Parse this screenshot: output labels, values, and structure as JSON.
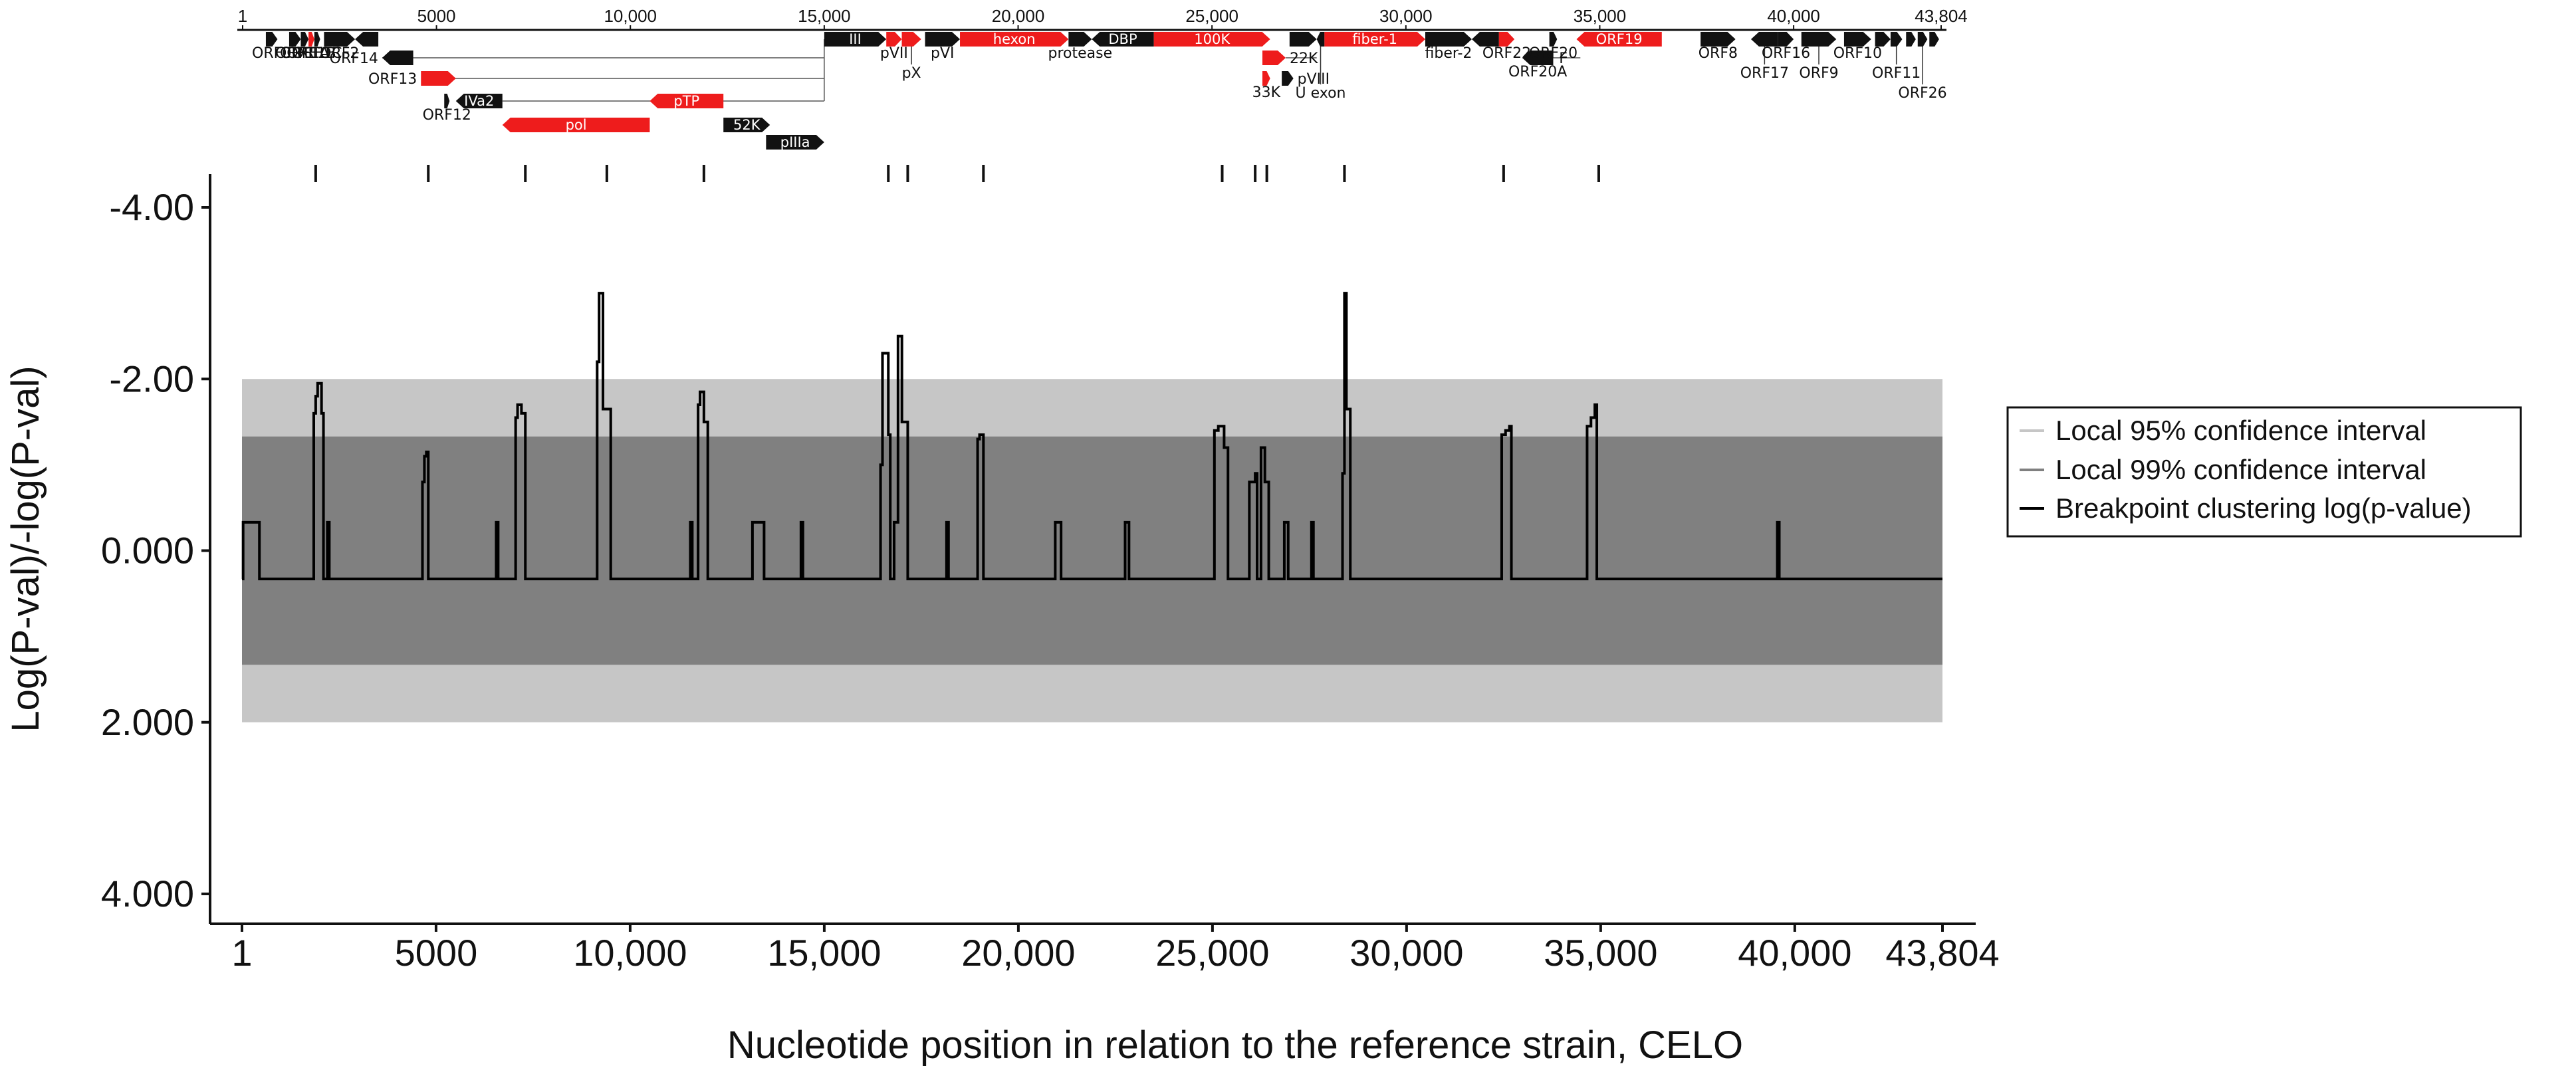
{
  "chart_data": {
    "type": "line",
    "title": "",
    "xlabel": "Nucleotide position in relation to the reference strain, CELO",
    "ylabel": "Log(P-val)/-log(P-val)",
    "xlim": [
      1,
      43804
    ],
    "ylim": [
      -4.0,
      4.0
    ],
    "y_inverted": true,
    "x_ticks": [
      1,
      5000,
      10000,
      15000,
      20000,
      25000,
      30000,
      35000,
      40000,
      43804
    ],
    "x_tick_labels": [
      "1",
      "5000",
      "10,000",
      "15,000",
      "20,000",
      "25,000",
      "30,000",
      "35,000",
      "40,000",
      "43,804"
    ],
    "y_ticks": [
      -4.0,
      -2.0,
      0.0,
      2.0,
      4.0
    ],
    "y_tick_labels": [
      "-4.00",
      "-2.00",
      "0.000",
      "2.000",
      "4.000"
    ],
    "bands": [
      {
        "name": "Local 95% confidence interval",
        "low": -2.0,
        "high": 2.0,
        "color": "#c6c6c6"
      },
      {
        "name": "Local 99% confidence interval",
        "low": -1.33,
        "high": 1.33,
        "color": "#808080"
      }
    ],
    "series": [
      {
        "name": "Breakpoint clustering log(p-value)",
        "color": "#000000",
        "points": [
          [
            1,
            0.33
          ],
          [
            30,
            -0.33
          ],
          [
            400,
            -0.33
          ],
          [
            450,
            0.33
          ],
          [
            700,
            0.33
          ],
          [
            1800,
            0.33
          ],
          [
            1850,
            -1.6
          ],
          [
            1900,
            -1.8
          ],
          [
            1950,
            -1.95
          ],
          [
            2050,
            -1.6
          ],
          [
            2100,
            0.33
          ],
          [
            2150,
            0.33
          ],
          [
            2200,
            -0.33
          ],
          [
            2250,
            0.33
          ],
          [
            4600,
            0.33
          ],
          [
            4650,
            -0.8
          ],
          [
            4700,
            -1.1
          ],
          [
            4750,
            -1.15
          ],
          [
            4800,
            0.33
          ],
          [
            6500,
            0.33
          ],
          [
            6550,
            -0.33
          ],
          [
            6600,
            0.33
          ],
          [
            7000,
            0.33
          ],
          [
            7050,
            -1.55
          ],
          [
            7100,
            -1.7
          ],
          [
            7200,
            -1.6
          ],
          [
            7300,
            0.33
          ],
          [
            9100,
            0.33
          ],
          [
            9150,
            -2.2
          ],
          [
            9200,
            -3.0
          ],
          [
            9300,
            -1.65
          ],
          [
            9500,
            0.33
          ],
          [
            11500,
            0.33
          ],
          [
            11550,
            -0.33
          ],
          [
            11600,
            0.33
          ],
          [
            11700,
            0.33
          ],
          [
            11750,
            -1.7
          ],
          [
            11800,
            -1.85
          ],
          [
            11900,
            -1.5
          ],
          [
            12000,
            0.33
          ],
          [
            13100,
            0.33
          ],
          [
            13150,
            -0.33
          ],
          [
            13400,
            -0.33
          ],
          [
            13450,
            0.33
          ],
          [
            14350,
            0.33
          ],
          [
            14400,
            -0.33
          ],
          [
            14450,
            0.33
          ],
          [
            16400,
            0.33
          ],
          [
            16450,
            -1.0
          ],
          [
            16500,
            -2.3
          ],
          [
            16650,
            -1.35
          ],
          [
            16700,
            0.33
          ],
          [
            16800,
            -0.33
          ],
          [
            16900,
            -2.5
          ],
          [
            17000,
            -1.5
          ],
          [
            17150,
            0.33
          ],
          [
            18100,
            0.33
          ],
          [
            18150,
            -0.33
          ],
          [
            18200,
            0.33
          ],
          [
            18900,
            0.33
          ],
          [
            18950,
            -1.3
          ],
          [
            19000,
            -1.35
          ],
          [
            19100,
            0.33
          ],
          [
            20900,
            0.33
          ],
          [
            20950,
            -0.33
          ],
          [
            21100,
            0.33
          ],
          [
            22700,
            0.33
          ],
          [
            22750,
            -0.33
          ],
          [
            22850,
            0.33
          ],
          [
            25000,
            0.33
          ],
          [
            25050,
            -1.4
          ],
          [
            25150,
            -1.45
          ],
          [
            25300,
            -1.2
          ],
          [
            25400,
            0.33
          ],
          [
            25900,
            0.33
          ],
          [
            25950,
            -0.8
          ],
          [
            26100,
            -0.9
          ],
          [
            26150,
            0.33
          ],
          [
            26250,
            -1.2
          ],
          [
            26350,
            -0.8
          ],
          [
            26450,
            0.33
          ],
          [
            26800,
            0.33
          ],
          [
            26850,
            -0.33
          ],
          [
            26950,
            0.33
          ],
          [
            27500,
            0.33
          ],
          [
            27550,
            -0.33
          ],
          [
            27600,
            0.33
          ],
          [
            28300,
            0.33
          ],
          [
            28350,
            -0.9
          ],
          [
            28400,
            -3.0
          ],
          [
            28450,
            -1.65
          ],
          [
            28550,
            0.33
          ],
          [
            32400,
            0.33
          ],
          [
            32450,
            -1.35
          ],
          [
            32550,
            -1.4
          ],
          [
            32650,
            -1.45
          ],
          [
            32700,
            0.33
          ],
          [
            34600,
            0.33
          ],
          [
            34650,
            -1.45
          ],
          [
            34750,
            -1.55
          ],
          [
            34850,
            -1.7
          ],
          [
            34900,
            0.33
          ],
          [
            39500,
            0.33
          ],
          [
            39550,
            -0.33
          ],
          [
            39600,
            0.33
          ],
          [
            43804,
            0.33
          ]
        ]
      }
    ],
    "legend": {
      "placement": "right",
      "entries": [
        "Local 95% confidence interval",
        "Local 99% confidence interval",
        "Breakpoint clustering log(p-value)"
      ]
    },
    "breakpoint_markers": [
      1900,
      4800,
      7300,
      9400,
      11900,
      16650,
      17150,
      19100,
      25250,
      26100,
      26400,
      28400,
      32500,
      34950
    ],
    "genome_map": {
      "scale_ticks": [
        1,
        5000,
        10000,
        15000,
        20000,
        25000,
        30000,
        35000,
        40000,
        43804
      ],
      "scale_tick_labels": [
        "1",
        "5000",
        "10,000",
        "15,000",
        "20,000",
        "25,000",
        "30,000",
        "35,000",
        "40,000",
        "43,804"
      ],
      "genes": [
        {
          "label": "ORF0",
          "start": 600,
          "end": 900,
          "row": 0,
          "color": "black",
          "dir": "right",
          "label_pos": "below"
        },
        {
          "label": "ORF1",
          "start": 1200,
          "end": 1500,
          "row": 0,
          "color": "black",
          "dir": "right",
          "label_pos": "below"
        },
        {
          "label": "ORF1A",
          "start": 1500,
          "end": 1700,
          "row": 0,
          "color": "black",
          "dir": "right",
          "label_pos": "below"
        },
        {
          "label": "ORF1B",
          "start": 1700,
          "end": 1850,
          "row": 0,
          "color": "red",
          "dir": "right",
          "label_pos": "below"
        },
        {
          "label": "ORF1C",
          "start": 1850,
          "end": 2000,
          "row": 0,
          "color": "black",
          "dir": "right",
          "label_pos": "below"
        },
        {
          "label": "ORF2",
          "start": 2100,
          "end": 2900,
          "row": 0,
          "color": "black",
          "dir": "right",
          "label_pos": "below"
        },
        {
          "label": "",
          "start": 2900,
          "end": 3500,
          "row": 0,
          "color": "black",
          "dir": "left",
          "label_pos": "none"
        },
        {
          "label": "ORF14",
          "start": 3600,
          "end": 4400,
          "row": 1,
          "color": "black",
          "dir": "left",
          "label_pos": "left"
        },
        {
          "label": "ORF13",
          "start": 4600,
          "end": 5500,
          "row": 2,
          "color": "red",
          "dir": "right",
          "label_pos": "left"
        },
        {
          "label": "ORF12",
          "start": 5200,
          "end": 5300,
          "row": 3,
          "color": "black",
          "dir": "right",
          "label_pos": "below"
        },
        {
          "label": "IVa2",
          "start": 5500,
          "end": 6700,
          "row": 3,
          "color": "black",
          "dir": "left",
          "label_pos": "in"
        },
        {
          "label": "pol",
          "start": 6700,
          "end": 10500,
          "row": 4,
          "color": "red",
          "dir": "left",
          "label_pos": "in"
        },
        {
          "label": "pTP",
          "start": 10500,
          "end": 12400,
          "row": 3,
          "color": "red",
          "dir": "left",
          "label_pos": "in"
        },
        {
          "label": "52K",
          "start": 12400,
          "end": 13600,
          "row": 4,
          "color": "black",
          "dir": "right",
          "label_pos": "in"
        },
        {
          "label": "pIIIa",
          "start": 13500,
          "end": 15000,
          "row": 5,
          "color": "black",
          "dir": "right",
          "label_pos": "in"
        },
        {
          "label": "III",
          "start": 15000,
          "end": 16600,
          "row": 0,
          "color": "black",
          "dir": "right",
          "label_pos": "in"
        },
        {
          "label": "pVII",
          "start": 16600,
          "end": 17000,
          "row": 0,
          "color": "red",
          "dir": "right",
          "label_pos": "below"
        },
        {
          "label": "pX",
          "start": 17000,
          "end": 17500,
          "row": 0,
          "color": "red",
          "dir": "right",
          "label_pos": "below2"
        },
        {
          "label": "pVI",
          "start": 17600,
          "end": 18500,
          "row": 0,
          "color": "black",
          "dir": "right",
          "label_pos": "below"
        },
        {
          "label": "hexon",
          "start": 18500,
          "end": 21300,
          "row": 0,
          "color": "red",
          "dir": "right",
          "label_pos": "in"
        },
        {
          "label": "protease",
          "start": 21300,
          "end": 21900,
          "row": 0,
          "color": "black",
          "dir": "right",
          "label_pos": "below"
        },
        {
          "label": "DBP",
          "start": 21900,
          "end": 23500,
          "row": 0,
          "color": "black",
          "dir": "left",
          "label_pos": "in"
        },
        {
          "label": "100K",
          "start": 23500,
          "end": 26500,
          "row": 0,
          "color": "red",
          "dir": "right",
          "label_pos": "in"
        },
        {
          "label": "22K",
          "start": 26300,
          "end": 26900,
          "row": 1,
          "color": "red",
          "dir": "right",
          "label_pos": "right"
        },
        {
          "label": "33K",
          "start": 26300,
          "end": 26500,
          "row": 2,
          "color": "red",
          "dir": "right",
          "label_pos": "below"
        },
        {
          "label": "pVIII",
          "start": 26800,
          "end": 27100,
          "row": 2,
          "color": "black",
          "dir": "right",
          "label_pos": "right"
        },
        {
          "label": "",
          "start": 27000,
          "end": 27700,
          "row": 0,
          "color": "black",
          "dir": "right",
          "label_pos": "none"
        },
        {
          "label": "U exon",
          "start": 27700,
          "end": 27900,
          "row": 0,
          "color": "black",
          "dir": "left",
          "label_pos": "below3"
        },
        {
          "label": "fiber-1",
          "start": 27900,
          "end": 30500,
          "row": 0,
          "color": "red",
          "dir": "right",
          "label_pos": "in"
        },
        {
          "label": "fiber-2",
          "start": 30500,
          "end": 31700,
          "row": 0,
          "color": "black",
          "dir": "right",
          "label_pos": "below"
        },
        {
          "label": "",
          "start": 31700,
          "end": 32400,
          "row": 0,
          "color": "black",
          "dir": "left",
          "label_pos": "none"
        },
        {
          "label": "ORF22",
          "start": 32400,
          "end": 32800,
          "row": 0,
          "color": "red",
          "dir": "right",
          "label_pos": "below"
        },
        {
          "label": "ORF20A",
          "start": 33000,
          "end": 33800,
          "row": 1,
          "color": "black",
          "dir": "left",
          "label_pos": "below"
        },
        {
          "label": "ORF19",
          "start": 34400,
          "end": 36600,
          "row": 0,
          "color": "red",
          "dir": "left",
          "label_pos": "in"
        },
        {
          "label": "ORF20",
          "start": 33700,
          "end": 33900,
          "row": 0,
          "color": "black",
          "dir": "right",
          "label_pos": "below"
        },
        {
          "label": "ORF8",
          "start": 37600,
          "end": 38500,
          "row": 0,
          "color": "black",
          "dir": "right",
          "label_pos": "below"
        },
        {
          "label": "ORF17",
          "start": 38900,
          "end": 39600,
          "row": 0,
          "color": "black",
          "dir": "left",
          "label_pos": "below2"
        },
        {
          "label": "ORF16",
          "start": 39600,
          "end": 40000,
          "row": 0,
          "color": "black",
          "dir": "right",
          "label_pos": "below"
        },
        {
          "label": "ORF9",
          "start": 40200,
          "end": 41100,
          "row": 0,
          "color": "black",
          "dir": "right",
          "label_pos": "below2"
        },
        {
          "label": "ORF10",
          "start": 41300,
          "end": 42000,
          "row": 0,
          "color": "black",
          "dir": "right",
          "label_pos": "below"
        },
        {
          "label": "",
          "start": 42100,
          "end": 42500,
          "row": 0,
          "color": "black",
          "dir": "right",
          "label_pos": "none"
        },
        {
          "label": "ORF11",
          "start": 42500,
          "end": 42800,
          "row": 0,
          "color": "black",
          "dir": "right",
          "label_pos": "below2"
        },
        {
          "label": "",
          "start": 42900,
          "end": 43150,
          "row": 0,
          "color": "black",
          "dir": "right",
          "label_pos": "none"
        },
        {
          "label": "ORF26",
          "start": 43200,
          "end": 43450,
          "row": 0,
          "color": "black",
          "dir": "right",
          "label_pos": "below3"
        },
        {
          "label": "",
          "start": 43500,
          "end": 43750,
          "row": 0,
          "color": "black",
          "dir": "right",
          "label_pos": "none"
        }
      ],
      "partial_labels": [
        "F"
      ]
    }
  }
}
